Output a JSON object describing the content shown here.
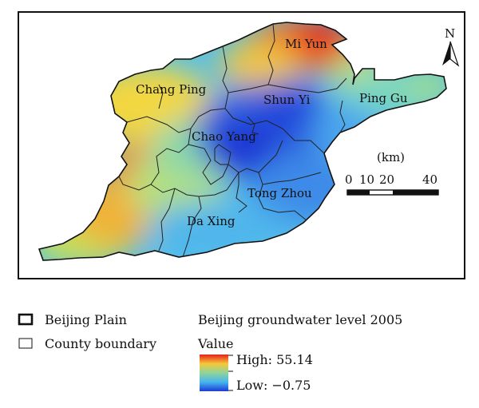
{
  "map": {
    "north_arrow_label": "N",
    "district_labels": [
      {
        "id": "mi-yun",
        "text": "Mi Yun"
      },
      {
        "id": "chang-ping",
        "text": "Chang Ping"
      },
      {
        "id": "shun-yi",
        "text": "Shun Yi"
      },
      {
        "id": "ping-gu",
        "text": "Ping Gu"
      },
      {
        "id": "chao-yang",
        "text": "Chao Yang"
      },
      {
        "id": "tong-zhou",
        "text": "Tong Zhou"
      },
      {
        "id": "da-xing",
        "text": "Da Xing"
      }
    ],
    "scale_bar": {
      "unit_label": "(km)",
      "ticks": [
        "0",
        "10",
        "20",
        "40"
      ]
    }
  },
  "legend": {
    "boundary_items": [
      {
        "label": "Beijing Plain"
      },
      {
        "label": "County boundary"
      }
    ],
    "raster_title": "Beijing groundwater level 2005",
    "raster_subtitle": "Value",
    "high_label": "High: 55.14",
    "low_label": "Low: −0.75",
    "colors": {
      "high": "#e8201a",
      "upper": "#f5c83a",
      "middle": "#8ed39a",
      "lower": "#46b6ee",
      "low": "#1b3ad8"
    }
  }
}
